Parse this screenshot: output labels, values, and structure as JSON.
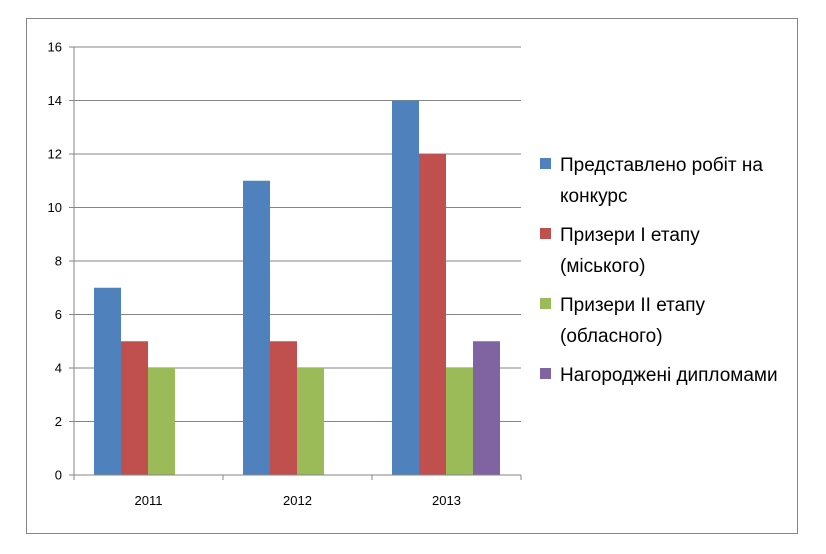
{
  "chart_data": {
    "type": "bar",
    "title": "",
    "xlabel": "",
    "ylabel": "",
    "categories": [
      "2011",
      "2012",
      "2013"
    ],
    "ylim": [
      0,
      16
    ],
    "yticks": [
      0,
      2,
      4,
      6,
      8,
      10,
      12,
      14,
      16
    ],
    "grid": true,
    "legend_position": "right",
    "series": [
      {
        "name": "Представлено робіт на конкурс",
        "color": "#4F81BD",
        "values": [
          7,
          11,
          14
        ]
      },
      {
        "name": "Призери І етапу (міського)",
        "color": "#C0504D",
        "values": [
          5,
          5,
          12
        ]
      },
      {
        "name": "Призери ІІ етапу (обласного)",
        "color": "#9BBB59",
        "values": [
          4,
          4,
          4
        ]
      },
      {
        "name": "Нагороджені дипломами",
        "color": "#8064A2",
        "values": [
          null,
          null,
          5
        ]
      }
    ]
  }
}
